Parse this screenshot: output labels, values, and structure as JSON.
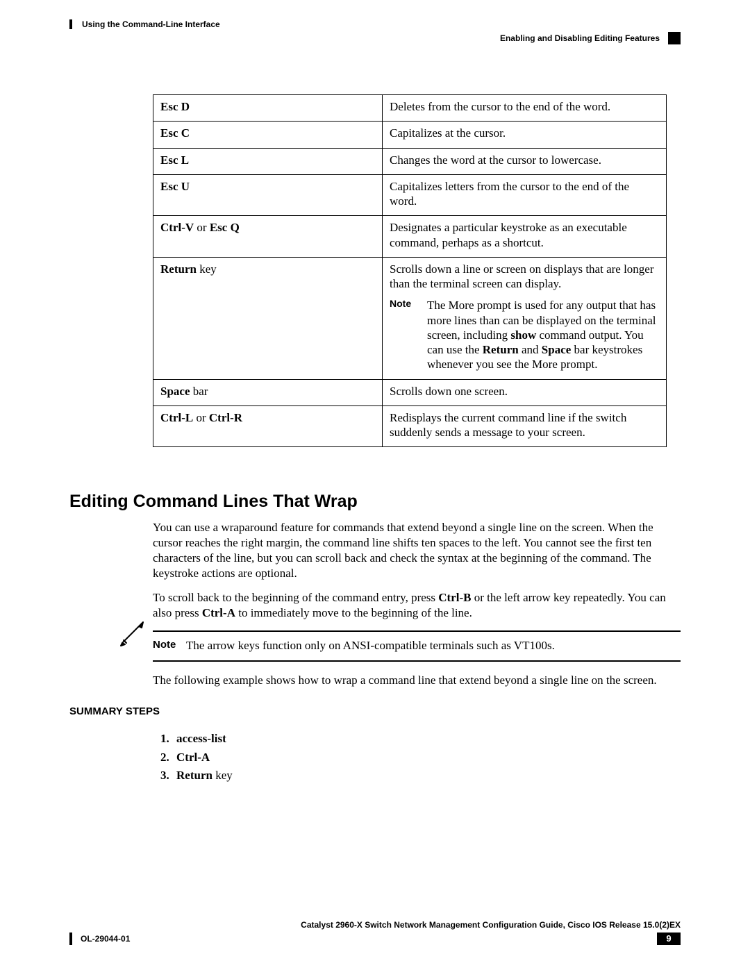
{
  "header": {
    "chapter": "Using the Command-Line Interface",
    "section": "Enabling and Disabling Editing Features"
  },
  "table": {
    "rows": [
      {
        "key_bold": "Esc D",
        "key_rest": "",
        "desc": "Deletes from the cursor to the end of the word."
      },
      {
        "key_bold": "Esc C",
        "key_rest": "",
        "desc": "Capitalizes at the cursor."
      },
      {
        "key_bold": "Esc L",
        "key_rest": "",
        "desc": "Changes the word at the cursor to lowercase."
      },
      {
        "key_bold": "Esc U",
        "key_rest": "",
        "desc": "Capitalizes letters from the cursor to the end of the word."
      },
      {
        "key_html": "<span class='b'>Ctrl-V</span> or <span class='b'>Esc Q</span>",
        "desc": "Designates a particular keystroke as an executable command, perhaps as a shortcut."
      },
      {
        "key_html": "<span class='b'>Return</span> key",
        "desc": "Scrolls down a line or screen on displays that are longer than the terminal screen can display.",
        "note_label": "Note",
        "note_html": "The More prompt is used for any output that has more lines than can be displayed on the terminal screen, including <span class='b'>show</span> command output. You can use the <span class='b'>Return</span> and <span class='b'>Space</span> bar keystrokes whenever you see the More prompt."
      },
      {
        "key_html": "<span class='b'>Space</span> bar",
        "desc": "Scrolls down one screen."
      },
      {
        "key_html": "<span class='b'>Ctrl-L</span> or <span class='b'>Ctrl-R</span>",
        "desc": "Redisplays the current command line if the switch suddenly sends a message to your screen."
      }
    ]
  },
  "section": {
    "heading": "Editing Command Lines That Wrap",
    "p1": "You can use a wraparound feature for commands that extend beyond a single line on the screen. When the cursor reaches the right margin, the command line shifts ten spaces to the left. You cannot see the first ten characters of the line, but you can scroll back and check the syntax at the beginning of the command. The keystroke actions are optional.",
    "p2_html": "To scroll back to the beginning of the command entry, press <span class='b'>Ctrl-B</span> or the left arrow key repeatedly. You can also press <span class='b'>Ctrl-A</span> to immediately move to the beginning of the line.",
    "note_label": "Note",
    "note_text": "The arrow keys function only on ANSI-compatible terminals such as VT100s.",
    "p3": "The following example shows how to wrap a command line that extend beyond a single line on the screen."
  },
  "summary": {
    "heading": "SUMMARY STEPS",
    "steps": [
      {
        "bold": "access-list",
        "rest": ""
      },
      {
        "bold": "Ctrl-A",
        "rest": ""
      },
      {
        "bold": "Return",
        "rest": " key"
      }
    ]
  },
  "footer": {
    "guide": "Catalyst 2960-X Switch Network Management Configuration Guide, Cisco IOS Release 15.0(2)EX",
    "doc_id": "OL-29044-01",
    "page": "9"
  }
}
